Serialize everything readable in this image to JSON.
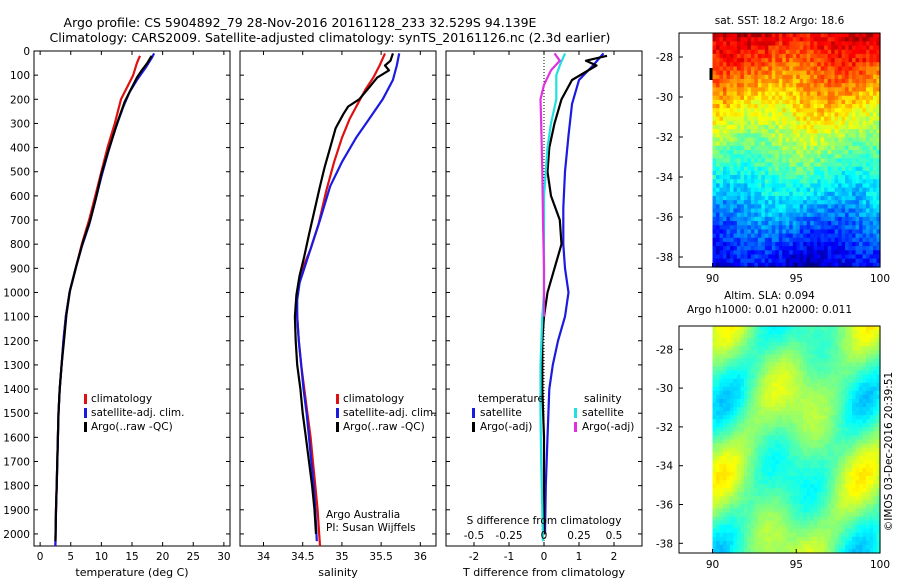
{
  "title": {
    "line1": "Argo profile: CS 5904892_79 28-Nov-2016 20161128_233 32.529S 94.139E",
    "line2": "Climatology: CARS2009. Satellite-adjusted climatology: synTS_20161126.nc (2.3d earlier)"
  },
  "colors": {
    "climatology": "#e01010",
    "satellite": "#1a1ae0",
    "argo": "#000000",
    "argo_salinity_adj": "#e030e0",
    "satellite_salinity": "#20e0e0"
  },
  "chart_data": [
    {
      "type": "line",
      "id": "temperature",
      "xlabel": "temperature (deg C)",
      "ylim": [
        0,
        2050
      ],
      "xlim": [
        -1,
        31
      ],
      "xticks": [
        0,
        5,
        10,
        15,
        20,
        25,
        30
      ],
      "yticks": [
        0,
        100,
        200,
        300,
        400,
        500,
        600,
        700,
        800,
        900,
        1000,
        1100,
        1200,
        1300,
        1400,
        1500,
        1600,
        1700,
        1800,
        1900,
        2000
      ],
      "legend": [
        "climatology",
        "satellite-adj. clim.",
        "Argo(..raw -QC)"
      ],
      "series": [
        {
          "name": "climatology",
          "color": "red",
          "points": [
            [
              16.3,
              20
            ],
            [
              15.8,
              50
            ],
            [
              15.2,
              100
            ],
            [
              14.2,
              150
            ],
            [
              13.2,
              200
            ],
            [
              12.2,
              300
            ],
            [
              11.0,
              400
            ],
            [
              10.0,
              500
            ],
            [
              9.0,
              600
            ],
            [
              8.0,
              700
            ],
            [
              6.8,
              800
            ],
            [
              5.8,
              900
            ],
            [
              4.8,
              1000
            ],
            [
              4.2,
              1100
            ],
            [
              3.8,
              1200
            ],
            [
              3.5,
              1300
            ],
            [
              3.2,
              1400
            ],
            [
              3.0,
              1500
            ],
            [
              2.9,
              1600
            ],
            [
              2.8,
              1700
            ],
            [
              2.7,
              1800
            ],
            [
              2.6,
              1900
            ],
            [
              2.5,
              2050
            ]
          ]
        },
        {
          "name": "satellite-adj. clim.",
          "color": "blue",
          "points": [
            [
              18.6,
              10
            ],
            [
              18.2,
              30
            ],
            [
              17.2,
              70
            ],
            [
              15.8,
              120
            ],
            [
              14.6,
              170
            ],
            [
              13.6,
              230
            ],
            [
              12.3,
              320
            ],
            [
              11.1,
              420
            ],
            [
              10.0,
              520
            ],
            [
              9.0,
              620
            ],
            [
              8.0,
              720
            ],
            [
              6.8,
              810
            ],
            [
              5.8,
              900
            ],
            [
              4.8,
              1000
            ],
            [
              4.2,
              1100
            ],
            [
              3.8,
              1200
            ],
            [
              3.5,
              1300
            ],
            [
              3.2,
              1400
            ],
            [
              3.0,
              1500
            ],
            [
              2.9,
              1600
            ],
            [
              2.8,
              1700
            ],
            [
              2.7,
              1800
            ],
            [
              2.6,
              1900
            ],
            [
              2.5,
              2050
            ]
          ]
        },
        {
          "name": "Argo(..raw -QC)",
          "color": "black",
          "points": [
            [
              18.2,
              20
            ],
            [
              17.5,
              50
            ],
            [
              16.6,
              80
            ],
            [
              15.8,
              110
            ],
            [
              14.8,
              160
            ],
            [
              13.8,
              210
            ],
            [
              12.7,
              290
            ],
            [
              11.3,
              400
            ],
            [
              10.0,
              510
            ],
            [
              9.1,
              610
            ],
            [
              8.2,
              700
            ],
            [
              7.0,
              790
            ],
            [
              5.9,
              890
            ],
            [
              4.9,
              990
            ],
            [
              4.3,
              1090
            ],
            [
              3.9,
              1200
            ],
            [
              3.5,
              1300
            ],
            [
              3.2,
              1400
            ],
            [
              3.0,
              1500
            ],
            [
              2.9,
              1600
            ],
            [
              2.8,
              1700
            ],
            [
              2.7,
              1800
            ],
            [
              2.6,
              1900
            ],
            [
              2.5,
              2030
            ]
          ]
        }
      ]
    },
    {
      "type": "line",
      "id": "salinity",
      "xlabel": "salinity",
      "ylim": [
        0,
        2050
      ],
      "xlim": [
        33.7,
        36.2
      ],
      "xticks": [
        34,
        34.5,
        35,
        35.5,
        36
      ],
      "legend": [
        "climatology",
        "satellite-adj. clim.",
        "Argo(..raw -QC)"
      ],
      "annotation": [
        "Argo Australia",
        "PI: Susan Wijffels"
      ],
      "series": [
        {
          "name": "climatology",
          "color": "red",
          "points": [
            [
              35.55,
              10
            ],
            [
              35.48,
              60
            ],
            [
              35.4,
              110
            ],
            [
              35.3,
              160
            ],
            [
              35.2,
              220
            ],
            [
              35.1,
              280
            ],
            [
              35.0,
              360
            ],
            [
              34.9,
              460
            ],
            [
              34.8,
              580
            ],
            [
              34.7,
              720
            ],
            [
              34.6,
              820
            ],
            [
              34.5,
              900
            ],
            [
              34.45,
              960
            ],
            [
              34.42,
              1030
            ],
            [
              34.43,
              1100
            ],
            [
              34.45,
              1200
            ],
            [
              34.48,
              1300
            ],
            [
              34.52,
              1400
            ],
            [
              34.56,
              1500
            ],
            [
              34.6,
              1600
            ],
            [
              34.63,
              1700
            ],
            [
              34.66,
              1800
            ],
            [
              34.69,
              1900
            ],
            [
              34.72,
              2050
            ]
          ]
        },
        {
          "name": "satellite-adj. clim.",
          "color": "blue",
          "points": [
            [
              35.73,
              10
            ],
            [
              35.7,
              60
            ],
            [
              35.65,
              120
            ],
            [
              35.52,
              200
            ],
            [
              35.35,
              280
            ],
            [
              35.18,
              360
            ],
            [
              35.0,
              460
            ],
            [
              34.85,
              560
            ],
            [
              34.72,
              700
            ],
            [
              34.62,
              800
            ],
            [
              34.53,
              890
            ],
            [
              34.46,
              960
            ],
            [
              34.43,
              1030
            ],
            [
              34.43,
              1100
            ],
            [
              34.45,
              1200
            ],
            [
              34.48,
              1300
            ],
            [
              34.51,
              1400
            ],
            [
              34.55,
              1500
            ],
            [
              34.58,
              1600
            ],
            [
              34.61,
              1700
            ],
            [
              34.64,
              1800
            ],
            [
              34.66,
              1900
            ],
            [
              34.68,
              2030
            ]
          ]
        },
        {
          "name": "Argo(..raw -QC)",
          "color": "black",
          "points": [
            [
              35.65,
              10
            ],
            [
              35.62,
              40
            ],
            [
              35.55,
              60
            ],
            [
              35.6,
              80
            ],
            [
              35.45,
              110
            ],
            [
              35.35,
              150
            ],
            [
              35.22,
              200
            ],
            [
              35.08,
              230
            ],
            [
              35.02,
              260
            ],
            [
              34.92,
              320
            ],
            [
              34.85,
              400
            ],
            [
              34.78,
              480
            ],
            [
              34.72,
              560
            ],
            [
              34.65,
              660
            ],
            [
              34.58,
              760
            ],
            [
              34.52,
              850
            ],
            [
              34.46,
              930
            ],
            [
              34.42,
              1010
            ],
            [
              34.4,
              1100
            ],
            [
              34.41,
              1200
            ],
            [
              34.43,
              1300
            ],
            [
              34.47,
              1400
            ],
            [
              34.5,
              1500
            ],
            [
              34.54,
              1600
            ],
            [
              34.58,
              1700
            ],
            [
              34.62,
              1800
            ],
            [
              34.65,
              1900
            ],
            [
              34.67,
              2000
            ]
          ]
        }
      ]
    },
    {
      "type": "line",
      "id": "difference",
      "xlabel": "T difference from climatology",
      "xlabel_top": "S difference from climatology",
      "xticks_T": [
        -2,
        -1,
        0,
        1,
        2
      ],
      "xticks_S": [
        -0.5,
        -0.25,
        0,
        0.25,
        0.5
      ],
      "xlim_T": [
        -2.8,
        2.8
      ],
      "ylim": [
        0,
        2050
      ],
      "legend": {
        "temperature": {
          "title": "temperature",
          "entries": [
            "satellite",
            "Argo(-adj)"
          ]
        },
        "salinity": {
          "title": "salinity",
          "entries": [
            "satellite",
            "Argo(-adj)"
          ]
        }
      },
      "series": [
        {
          "name": "temperature satellite",
          "color": "blue",
          "points": [
            [
              1.7,
              10
            ],
            [
              1.4,
              60
            ],
            [
              1.0,
              120
            ],
            [
              0.8,
              220
            ],
            [
              0.7,
              350
            ],
            [
              0.6,
              500
            ],
            [
              0.55,
              650
            ],
            [
              0.55,
              800
            ],
            [
              0.6,
              900
            ],
            [
              0.7,
              1000
            ],
            [
              0.6,
              1100
            ],
            [
              0.4,
              1200
            ],
            [
              0.25,
              1300
            ],
            [
              0.15,
              1400
            ],
            [
              0.1,
              1600
            ],
            [
              0.05,
              1800
            ],
            [
              0.03,
              2000
            ]
          ]
        },
        {
          "name": "temperature Argo(-adj)",
          "color": "black",
          "points": [
            [
              1.8,
              20
            ],
            [
              1.2,
              40
            ],
            [
              1.5,
              60
            ],
            [
              0.8,
              120
            ],
            [
              0.5,
              200
            ],
            [
              0.3,
              300
            ],
            [
              0.15,
              400
            ],
            [
              0.1,
              500
            ],
            [
              0.2,
              600
            ],
            [
              0.45,
              700
            ],
            [
              0.5,
              800
            ],
            [
              0.3,
              900
            ],
            [
              0.1,
              1000
            ],
            [
              0.0,
              1100
            ],
            [
              -0.05,
              1200
            ],
            [
              -0.05,
              1400
            ],
            [
              0.0,
              1600
            ],
            [
              0.0,
              1800
            ],
            [
              0.0,
              2000
            ]
          ]
        },
        {
          "name": "salinity satellite",
          "color": "cyan",
          "points": [
            [
              0.6,
              10
            ],
            [
              0.45,
              60
            ],
            [
              0.35,
              100
            ],
            [
              0.35,
              200
            ],
            [
              0.2,
              300
            ],
            [
              0.1,
              400
            ],
            [
              0.05,
              500
            ],
            [
              0.0,
              600
            ],
            [
              0.0,
              800
            ],
            [
              0.0,
              1000
            ],
            [
              -0.05,
              1100
            ],
            [
              -0.1,
              1300
            ],
            [
              -0.1,
              1500
            ],
            [
              -0.08,
              1700
            ],
            [
              -0.05,
              1900
            ],
            [
              -0.03,
              2030
            ]
          ]
        },
        {
          "name": "salinity Argo(-adj)",
          "color": "magenta",
          "points": [
            [
              0.3,
              10
            ],
            [
              0.45,
              40
            ],
            [
              0.2,
              80
            ],
            [
              0.0,
              140
            ],
            [
              -0.1,
              200
            ],
            [
              -0.08,
              300
            ],
            [
              -0.05,
              500
            ],
            [
              -0.03,
              700
            ],
            [
              0.0,
              900
            ],
            [
              0.0,
              1100
            ]
          ]
        }
      ]
    },
    {
      "type": "heatmap",
      "id": "sst_map",
      "title": "sat. SST: 18.2  Argo: 18.6",
      "xticks": [
        90,
        95,
        100
      ],
      "yticks": [
        -28,
        -30,
        -32,
        -34,
        -36,
        -38
      ],
      "xlim": [
        88,
        100
      ],
      "ylim": [
        -38.5,
        -26.8
      ]
    },
    {
      "type": "heatmap",
      "id": "sla_map",
      "title": "Altim. SLA: 0.094",
      "subtitle": "Argo h1000: 0.01  h2000: 0.011",
      "xticks": [
        90,
        95,
        100
      ],
      "yticks": [
        -28,
        -30,
        -32,
        -34,
        -36,
        -38
      ],
      "xlim": [
        88,
        100
      ],
      "ylim": [
        -38.5,
        -26.8
      ],
      "side_label": "©IMOS 03-Dec-2016 20:39:51"
    }
  ]
}
